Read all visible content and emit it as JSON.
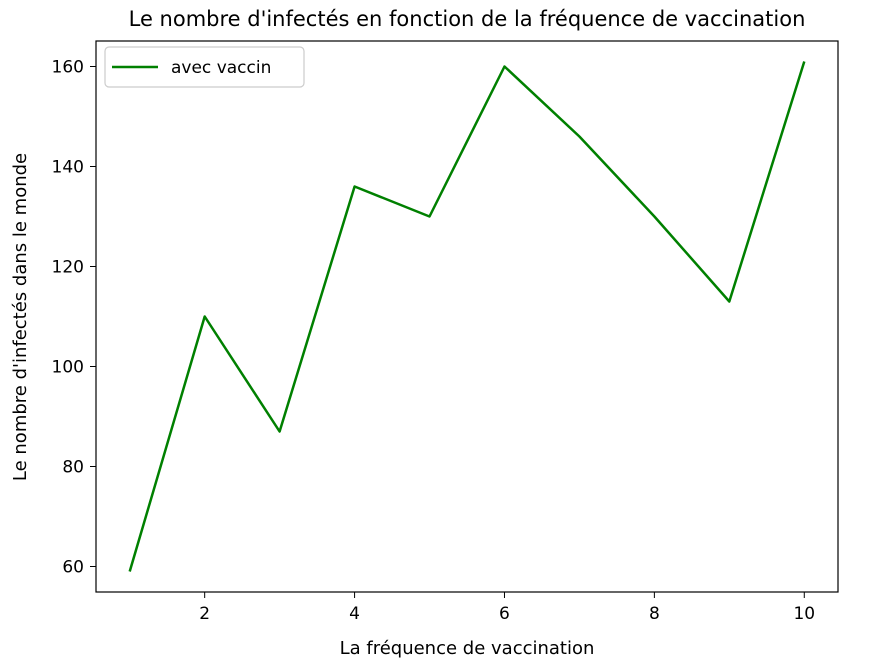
{
  "chart_data": {
    "type": "line",
    "title": "Le nombre d'infectés en fonction de la fréquence de vaccination",
    "xlabel": "La fréquence de vaccination",
    "ylabel": "Le nombre d'infectés dans le monde",
    "x": [
      1,
      2,
      3,
      4,
      5,
      6,
      7,
      8,
      9,
      10
    ],
    "series": [
      {
        "name": "avec vaccin",
        "color": "#008000",
        "values": [
          59,
          110,
          87,
          136,
          130,
          160,
          146,
          130,
          113,
          161
        ]
      }
    ],
    "xlim": [
      0.55,
      10.45
    ],
    "ylim": [
      54.9,
      165.1
    ],
    "xticks": [
      2,
      4,
      6,
      8,
      10
    ],
    "yticks": [
      60,
      80,
      100,
      120,
      140,
      160
    ],
    "grid": false,
    "legend": "top-left"
  }
}
